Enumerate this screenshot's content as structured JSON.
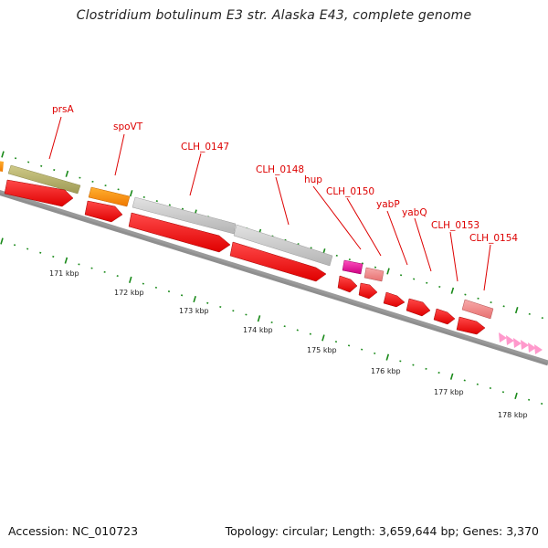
{
  "title": "Clostridium botulinum E3 str. Alaska E43, complete genome",
  "footer": {
    "accession": "Accession: NC_010723",
    "summary": "Topology: circular; Length: 3,659,644 bp; Genes: 3,370"
  },
  "colors": {
    "cds": "#ff0000",
    "cds_light": "#f08080",
    "backbone": "#888888",
    "tick": "#1a8a1a",
    "label": "#dd0000",
    "magenta": "#e0209a",
    "orange": "#ff8c00",
    "olive": "#b5b06a",
    "grey": "#c8c8c8",
    "pink": "#ff99cc"
  },
  "gene_labels": [
    "prsA",
    "spoVT",
    "CLH_0147",
    "CLH_0148",
    "hup",
    "CLH_0150",
    "yabP",
    "yabQ",
    "CLH_0153",
    "CLH_0154"
  ],
  "scale_labels": [
    "171 kbp",
    "172 kbp",
    "173 kbp",
    "174 kbp",
    "175 kbp",
    "176 kbp",
    "177 kbp",
    "178 kbp"
  ]
}
